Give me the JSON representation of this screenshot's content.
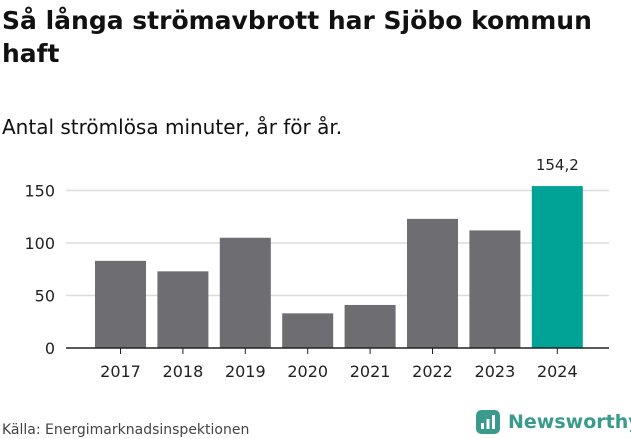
{
  "title": "Så långa strömavbrott har Sjöbo kommun haft",
  "subtitle": "Antal strömlösa minuter, år för år.",
  "source": "Källa: Energimarknadsinspektionen",
  "brand": {
    "name": "Newsworthy",
    "icon": "newsworthy-logo-icon",
    "color": "#3a9a8c"
  },
  "chart_data": {
    "type": "bar",
    "categories": [
      "2017",
      "2018",
      "2019",
      "2020",
      "2021",
      "2022",
      "2023",
      "2024"
    ],
    "values": [
      83,
      73,
      105,
      33,
      41,
      123,
      112,
      154.2
    ],
    "data_labels": [
      null,
      null,
      null,
      null,
      null,
      null,
      null,
      "154,2"
    ],
    "ylim": [
      0,
      160
    ],
    "yticks": [
      0,
      50,
      100,
      150
    ],
    "ytick_labels": [
      "0",
      "50",
      "100",
      "150"
    ],
    "grid": true,
    "bar_color": "#6e6d72",
    "highlight_color": "#00a396",
    "highlight_index": 7
  }
}
